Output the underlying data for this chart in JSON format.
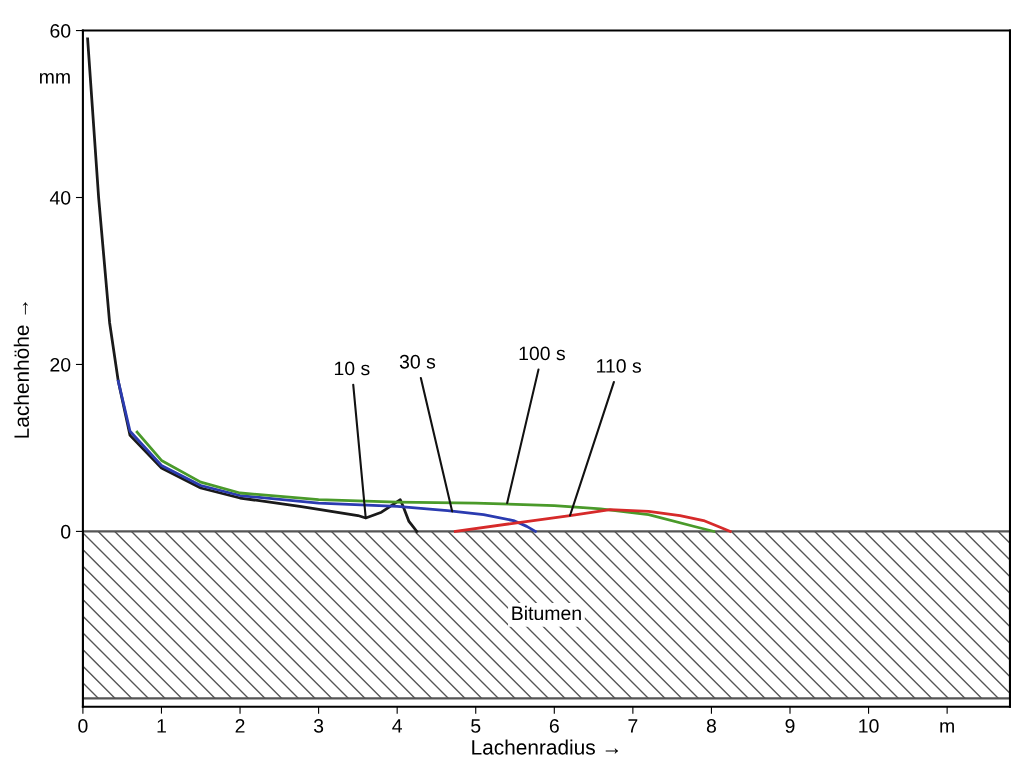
{
  "chart_data": {
    "type": "line",
    "xlabel": "Lachenradius →",
    "ylabel": "Lachenhöhe →",
    "xlim": [
      0,
      11.8
    ],
    "ylim": [
      -21,
      60
    ],
    "xticks": [
      0,
      1,
      2,
      3,
      4,
      5,
      6,
      7,
      8,
      9,
      10,
      {
        "value": 11,
        "label": "m"
      }
    ],
    "yticks": [
      0,
      20,
      40,
      {
        "value": 54.5,
        "label": "mm"
      },
      60
    ],
    "grid": false,
    "marker": "none",
    "line_style": "solid",
    "series": [
      {
        "color": "#1a1a1a",
        "x": [
          0.06,
          0.2,
          0.34,
          0.45,
          0.6,
          1.0,
          1.5,
          2.0,
          2.76,
          3.5,
          3.6,
          3.8,
          4.04,
          4.08,
          4.15,
          4.25
        ],
        "values": [
          59,
          40,
          25,
          18,
          11.5,
          7.6,
          5.2,
          4.0,
          3.0,
          1.9,
          1.6,
          2.3,
          3.8,
          2.9,
          1.2,
          0
        ]
      },
      {
        "color": "#2b3bb0",
        "x": [
          0.45,
          0.6,
          1.0,
          1.5,
          2.0,
          3.0,
          4.0,
          4.64,
          5.1,
          5.48,
          5.65,
          5.76
        ],
        "values": [
          18,
          12,
          7.9,
          5.5,
          4.3,
          3.4,
          3.0,
          2.5,
          2.0,
          1.3,
          0.6,
          0
        ]
      },
      {
        "color": "#4a9a2a",
        "x": [
          0.69,
          1.0,
          1.5,
          2.0,
          3.0,
          4.0,
          5.0,
          6.0,
          6.59,
          7.2,
          7.82,
          8.03
        ],
        "values": [
          11.9,
          8.5,
          5.9,
          4.6,
          3.8,
          3.5,
          3.4,
          3.1,
          2.7,
          2.0,
          0.5,
          0
        ]
      },
      {
        "color": "#d62a2a",
        "x": [
          4.74,
          5.5,
          6.2,
          6.71,
          7.2,
          7.6,
          7.9,
          8.11,
          8.24
        ],
        "values": [
          0,
          1.0,
          1.9,
          2.6,
          2.4,
          1.9,
          1.3,
          0.5,
          0
        ]
      }
    ],
    "bands": [
      {
        "axis": "y",
        "from": -20,
        "to": 0,
        "label": "Bitumen",
        "color": "#555555"
      }
    ],
    "annotations": [
      {
        "text": "10 s",
        "x": 3.6,
        "y": 1.6
      },
      {
        "text": "30 s",
        "x": 4.7,
        "y": 2.4
      },
      {
        "text": "100 s",
        "x": 5.4,
        "y": 3.4
      },
      {
        "text": "110 s",
        "x": 6.2,
        "y": 1.9
      }
    ]
  }
}
